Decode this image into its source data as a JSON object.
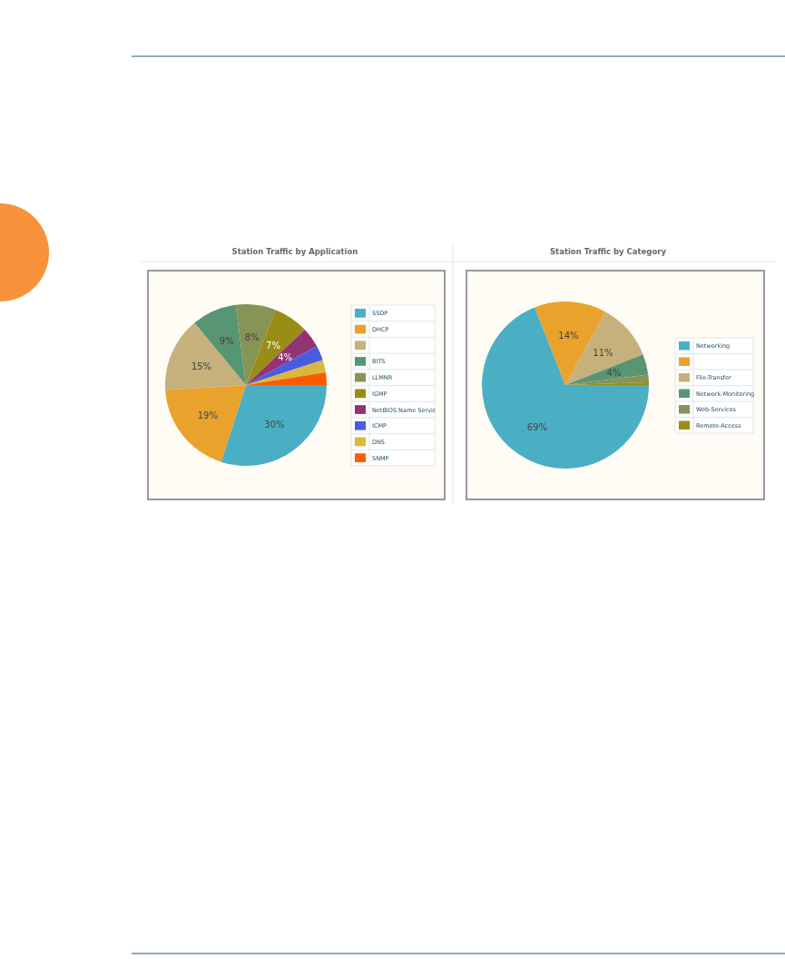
{
  "chart_data": [
    {
      "type": "pie",
      "title": "Station Traffic by Application",
      "categories": [
        "SSDP",
        "DHCP",
        null,
        "BITS",
        "LLMNR",
        "IGMP",
        "NetBIOS Name Servic",
        "ICMP",
        "DNS",
        "SNMP"
      ],
      "values": [
        30,
        19,
        15,
        9,
        8,
        7,
        4,
        3,
        2.5,
        2.5
      ],
      "colors": [
        "#4bafc4",
        "#e9a22c",
        "#c6b17d",
        "#589573",
        "#869455",
        "#9a8d15",
        "#923374",
        "#4b5be0",
        "#d9b83b",
        "#fd5b03"
      ],
      "value_labels": [
        "30%",
        "19%",
        "15%",
        "9%",
        "8%",
        "7%",
        "4%",
        null,
        null,
        null
      ],
      "legend": "right"
    },
    {
      "type": "pie",
      "title": "Station Traffic by Category",
      "categories": [
        "Networking",
        null,
        "File-Transfer",
        "Network-Monitoring",
        "Web-Services",
        "Remote-Access"
      ],
      "values": [
        69,
        14,
        11,
        4,
        1.5,
        0.5
      ],
      "colors": [
        "#4bafc4",
        "#e9a22c",
        "#c6b17d",
        "#589573",
        "#869455",
        "#9a8d15"
      ],
      "value_labels": [
        "69%",
        "14%",
        "11%",
        "4%",
        null,
        null
      ],
      "legend": "right"
    }
  ]
}
